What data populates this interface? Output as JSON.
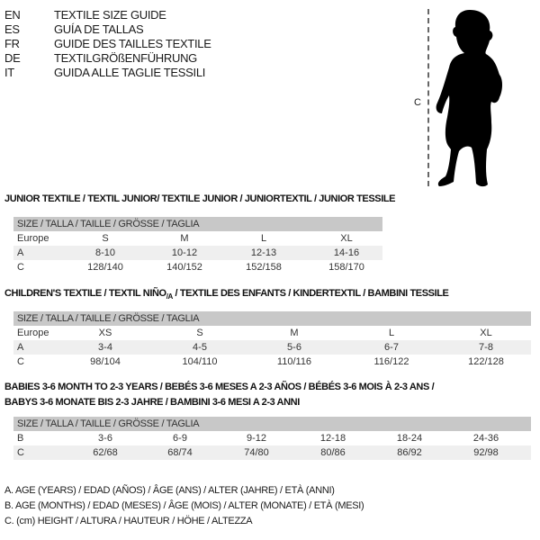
{
  "languages": [
    {
      "code": "EN",
      "text": "TEXTILE SIZE GUIDE"
    },
    {
      "code": "ES",
      "text": "GUÍA DE TALLAS"
    },
    {
      "code": "FR",
      "text": "GUIDE DES TAILLES TEXTILE"
    },
    {
      "code": "DE",
      "text": "TEXTILGRÖßENFÜHRUNG"
    },
    {
      "code": "IT",
      "text": "GUIDA ALLE TAGLIE TESSILI"
    }
  ],
  "figure": {
    "measure_label": "C",
    "icon": "toddler-silhouette"
  },
  "size_header": "SIZE / TALLA / TAILLE / GRÖSSE / TAGLIA",
  "junior": {
    "title": "JUNIOR TEXTILE / TEXTIL JUNIOR/ TEXTILE JUNIOR / JUNIORTEXTIL / JUNIOR TESSILE",
    "rows": [
      {
        "label": "Europe",
        "cells": [
          "S",
          "M",
          "L",
          "XL"
        ]
      },
      {
        "label": "A",
        "cells": [
          "8-10",
          "10-12",
          "12-13",
          "14-16"
        ]
      },
      {
        "label": "C",
        "cells": [
          "128/140",
          "140/152",
          "152/158",
          "158/170"
        ]
      }
    ]
  },
  "children": {
    "title_a": "CHILDREN'S TEXTILE / TEXTIL NIÑO",
    "title_sub": "/A",
    "title_b": " / TEXTILE DES ENFANTS / KINDERTEXTIL / BAMBINI TESSILE",
    "rows": [
      {
        "label": "Europe",
        "cells": [
          "XS",
          "S",
          "M",
          "L",
          "XL"
        ]
      },
      {
        "label": "A",
        "cells": [
          "3-4",
          "4-5",
          "5-6",
          "6-7",
          "7-8"
        ]
      },
      {
        "label": "C",
        "cells": [
          "98/104",
          "104/110",
          "110/116",
          "116/122",
          "122/128"
        ]
      }
    ]
  },
  "babies": {
    "title_line1": "BABIES 3-6 MONTH TO 2-3 YEARS / BEBÉS 3-6 MESES A 2-3 AÑOS / BÉBÉS 3-6 MOIS À 2-3 ANS /",
    "title_line2": "BABYS 3-6 MONATE BIS 2-3 JAHRE / BAMBINI 3-6 MESI A 2-3 ANNI",
    "rows": [
      {
        "label": "B",
        "cells": [
          "3-6",
          "6-9",
          "9-12",
          "12-18",
          "18-24",
          "24-36"
        ]
      },
      {
        "label": "C",
        "cells": [
          "62/68",
          "68/74",
          "74/80",
          "80/86",
          "86/92",
          "92/98"
        ]
      }
    ]
  },
  "legend": [
    "A. AGE (YEARS) / EDAD (AÑOS) / ÂGE (ANS) / ALTER (JAHRE) / ETÀ (ANNI)",
    "B. AGE (MONTHS) / EDAD (MESES) / ÂGE (MOIS) / ALTER (MONATE) / ETÀ (MESI)",
    "C. (cm) HEIGHT / ALTURA / HAUTEUR / HÖHE / ALTEZZA"
  ]
}
